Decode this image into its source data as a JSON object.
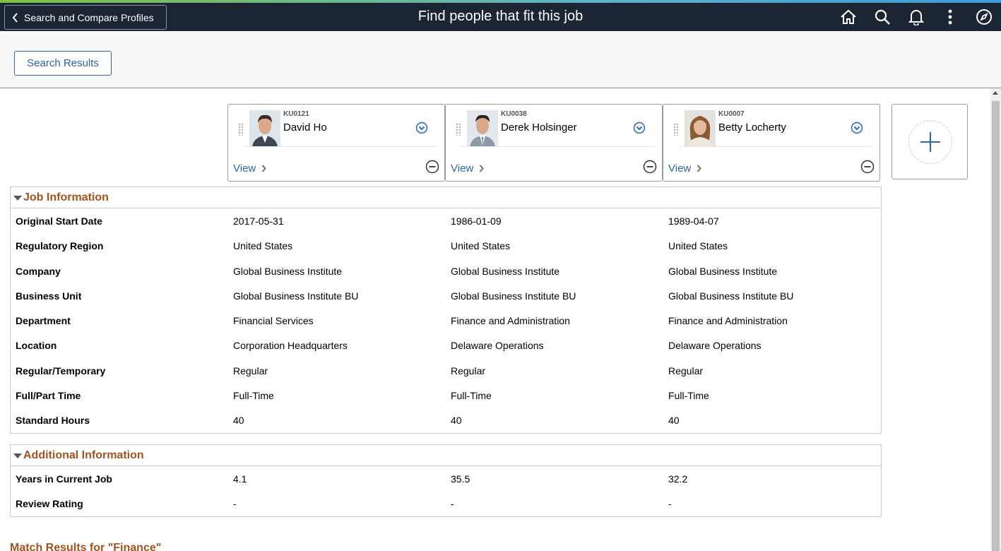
{
  "header": {
    "back_label": "Search and Compare Profiles",
    "title": "Find people that fit this job",
    "icons": [
      "home-icon",
      "search-icon",
      "bell-icon",
      "more-vertical-icon",
      "compass-icon"
    ]
  },
  "toolbar": {
    "search_results_label": "Search Results"
  },
  "profiles": [
    {
      "id": "KU0121",
      "name": "David Ho",
      "view_label": "View"
    },
    {
      "id": "KU0038",
      "name": "Derek Holsinger",
      "view_label": "View"
    },
    {
      "id": "KU0007",
      "name": "Betty Locherty",
      "view_label": "View"
    }
  ],
  "job_information": {
    "title": "Job Information",
    "rows": [
      {
        "label": "Original Start Date",
        "values": [
          "2017-05-31",
          "1986-01-09",
          "1989-04-07"
        ]
      },
      {
        "label": "Regulatory Region",
        "values": [
          "United States",
          "United States",
          "United States"
        ]
      },
      {
        "label": "Company",
        "values": [
          "Global Business Institute",
          "Global Business Institute",
          "Global Business Institute"
        ]
      },
      {
        "label": "Business Unit",
        "values": [
          "Global Business Institute BU",
          "Global Business Institute BU",
          "Global Business Institute BU"
        ]
      },
      {
        "label": "Department",
        "values": [
          "Financial Services",
          "Finance and Administration",
          "Finance and Administration"
        ]
      },
      {
        "label": "Location",
        "values": [
          "Corporation Headquarters",
          "Delaware Operations",
          "Delaware Operations"
        ]
      },
      {
        "label": "Regular/Temporary",
        "values": [
          "Regular",
          "Regular",
          "Regular"
        ]
      },
      {
        "label": "Full/Part Time",
        "values": [
          "Full-Time",
          "Full-Time",
          "Full-Time"
        ]
      },
      {
        "label": "Standard Hours",
        "values": [
          "40",
          "40",
          "40"
        ]
      }
    ]
  },
  "additional_information": {
    "title": "Additional Information",
    "rows": [
      {
        "label": "Years in Current Job",
        "values": [
          "4.1",
          "35.5",
          "32.2"
        ]
      },
      {
        "label": "Review Rating",
        "values": [
          "-",
          "-",
          "-"
        ]
      }
    ]
  },
  "match_results_title": "Match Results for \"Finance\"",
  "colors": {
    "header_bg": "#1c2533",
    "link": "#2b66a0",
    "section_title": "#a0531f"
  }
}
